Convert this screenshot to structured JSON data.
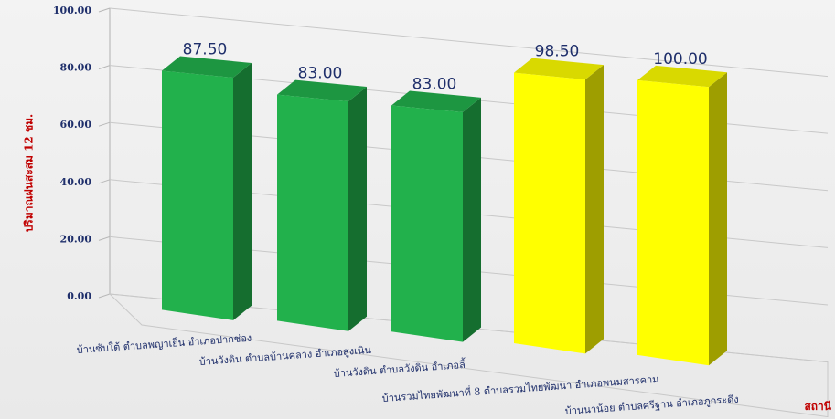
{
  "chart_data": {
    "type": "bar",
    "title": "",
    "xlabel": "สถานี",
    "ylabel": "ปริมาณฝนสะสม 12 ชม.",
    "ylim": [
      0,
      100
    ],
    "yticks": [
      "0.00",
      "20.00",
      "40.00",
      "60.00",
      "80.00",
      "100.00"
    ],
    "categories": [
      "บ้านซับใต้ ตำบลพญาเย็น อำเภอปากช่อง",
      "บ้านวังดิน ตำบลบ้านคลาง อำเภอสูงเนิน",
      "บ้านวังดิน ตำบลวังดิน อำเภอลี้",
      "บ้านรวมไทยพัฒนาที่ 8 ตำบลรวมไทยพัฒนา อำเภอพนมสารคาม",
      "บ้านนาน้อย ตำบลศรีฐาน อำเภอภูกระดึง"
    ],
    "values": [
      87.5,
      83.0,
      83.0,
      98.5,
      100.0
    ],
    "value_labels": [
      "87.50",
      "83.00",
      "83.00",
      "98.50",
      "100.00"
    ],
    "bar_colors": [
      "#22b14c",
      "#22b14c",
      "#22b14c",
      "#ffff00",
      "#ffff00"
    ],
    "grid": true,
    "legend": "none"
  }
}
